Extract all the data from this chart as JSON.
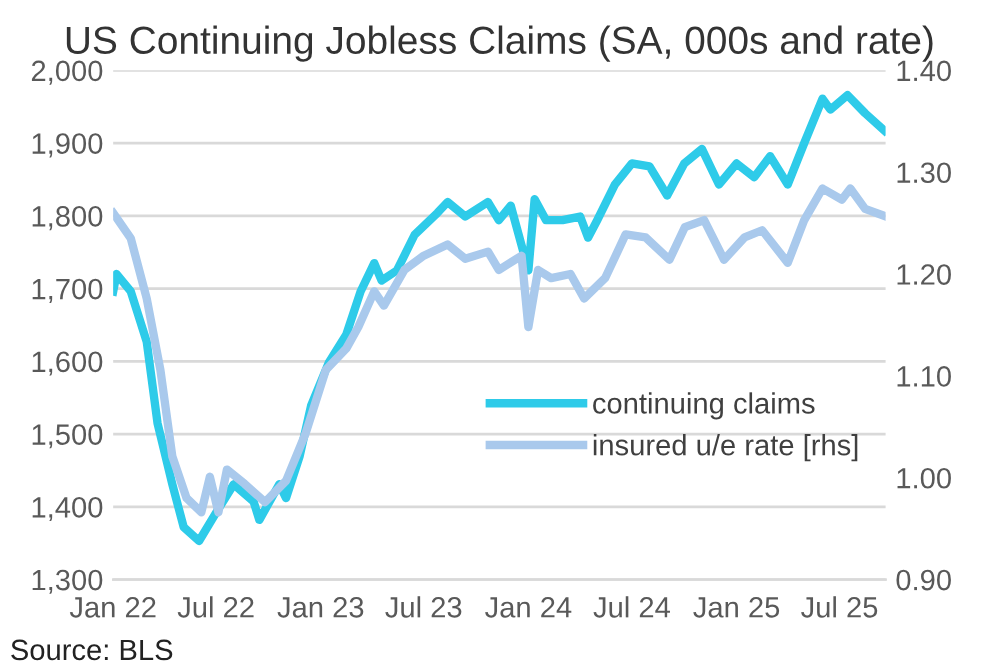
{
  "chart_data": {
    "type": "line",
    "title": "US Continuing Jobless Claims (SA, 000s and rate)",
    "xlim": [
      "2022-01-01",
      "2025-09-20"
    ],
    "xticks": [
      {
        "value": "2022-01-01",
        "label": "Jan 22"
      },
      {
        "value": "2022-07-01",
        "label": "Jul 22"
      },
      {
        "value": "2023-01-01",
        "label": "Jan 23"
      },
      {
        "value": "2023-07-01",
        "label": "Jul 23"
      },
      {
        "value": "2024-01-01",
        "label": "Jan 24"
      },
      {
        "value": "2024-07-01",
        "label": "Jul 24"
      },
      {
        "value": "2025-01-01",
        "label": "Jan 25"
      },
      {
        "value": "2025-07-01",
        "label": "Jul 25"
      }
    ],
    "ylim": [
      1300,
      2000
    ],
    "yticks": [
      {
        "value": 1300,
        "label": "1,300"
      },
      {
        "value": 1400,
        "label": "1,400"
      },
      {
        "value": 1500,
        "label": "1,500"
      },
      {
        "value": 1600,
        "label": "1,600"
      },
      {
        "value": 1700,
        "label": "1,700"
      },
      {
        "value": 1800,
        "label": "1,800"
      },
      {
        "value": 1900,
        "label": "1,900"
      },
      {
        "value": 2000,
        "label": "2,000"
      }
    ],
    "y2lim": [
      0.9,
      1.4
    ],
    "y2ticks": [
      {
        "value": 0.9,
        "label": "0.90"
      },
      {
        "value": 1.0,
        "label": "1.00"
      },
      {
        "value": 1.1,
        "label": "1.10"
      },
      {
        "value": 1.2,
        "label": "1.20"
      },
      {
        "value": 1.3,
        "label": "1.30"
      },
      {
        "value": 1.4,
        "label": "1.40"
      }
    ],
    "grid": "y",
    "legend": "right",
    "marker": "none",
    "line_style": "solid",
    "annotations": [
      "Source: BLS"
    ],
    "series": [
      {
        "name": "continuing claims",
        "color": "#2ecbe9",
        "x": [
          "2022-01-01",
          "2022-01-07",
          "2022-02-01",
          "2022-03-01",
          "2022-03-20",
          "2022-04-15",
          "2022-05-05",
          "2022-06-01",
          "2022-07-01",
          "2022-08-01",
          "2022-09-05",
          "2022-09-15",
          "2022-10-20",
          "2022-11-01",
          "2022-11-25",
          "2022-12-15",
          "2023-01-15",
          "2023-02-15",
          "2023-03-12",
          "2023-04-05",
          "2023-04-18",
          "2023-05-15",
          "2023-06-15",
          "2023-07-25",
          "2023-08-12",
          "2023-09-12",
          "2023-10-22",
          "2023-11-10",
          "2023-12-01",
          "2024-01-01",
          "2024-01-12",
          "2024-02-01",
          "2024-03-01",
          "2024-04-01",
          "2024-04-15",
          "2024-05-01",
          "2024-06-01",
          "2024-07-01",
          "2024-08-01",
          "2024-09-01",
          "2024-10-01",
          "2024-11-01",
          "2024-12-01",
          "2025-01-01",
          "2025-02-01",
          "2025-03-01",
          "2025-04-01",
          "2025-05-01",
          "2025-06-01",
          "2025-06-15",
          "2025-07-15",
          "2025-08-15",
          "2025-09-18"
        ],
        "values": [
          1696,
          1720,
          1696,
          1627,
          1515,
          1431,
          1372,
          1353,
          1392,
          1431,
          1407,
          1382,
          1431,
          1412,
          1470,
          1539,
          1598,
          1637,
          1696,
          1735,
          1711,
          1725,
          1774,
          1804,
          1819,
          1799,
          1819,
          1794,
          1814,
          1725,
          1823,
          1794,
          1794,
          1799,
          1770,
          1794,
          1843,
          1872,
          1868,
          1828,
          1872,
          1892,
          1843,
          1872,
          1853,
          1882,
          1843,
          1902,
          1961,
          1946,
          1966,
          1941,
          1917
        ]
      },
      {
        "name": "insured u/e rate [rhs]",
        "color": "#a9c9ec",
        "axis": "y2",
        "x": [
          "2022-01-01",
          "2022-02-01",
          "2022-03-01",
          "2022-03-25",
          "2022-04-15",
          "2022-05-10",
          "2022-06-05",
          "2022-06-20",
          "2022-07-05",
          "2022-07-20",
          "2022-08-20",
          "2022-09-25",
          "2022-11-01",
          "2022-12-05",
          "2023-01-10",
          "2023-02-15",
          "2023-03-08",
          "2023-04-05",
          "2023-04-22",
          "2023-05-28",
          "2023-07-01",
          "2023-08-12",
          "2023-09-12",
          "2023-10-22",
          "2023-11-10",
          "2023-12-20",
          "2024-01-01",
          "2024-01-18",
          "2024-02-10",
          "2024-03-15",
          "2024-04-08",
          "2024-05-15",
          "2024-06-20",
          "2024-07-25",
          "2024-09-05",
          "2024-10-02",
          "2024-11-05",
          "2024-12-10",
          "2025-01-15",
          "2025-02-15",
          "2025-04-01",
          "2025-04-30",
          "2025-06-01",
          "2025-07-05",
          "2025-07-20",
          "2025-08-15",
          "2025-09-18"
        ],
        "values": [
          1.26,
          1.235,
          1.176,
          1.106,
          1.021,
          0.98,
          0.966,
          1.001,
          0.966,
          1.008,
          0.994,
          0.976,
          0.997,
          1.043,
          1.106,
          1.127,
          1.148,
          1.183,
          1.169,
          1.204,
          1.218,
          1.229,
          1.215,
          1.222,
          1.204,
          1.218,
          1.148,
          1.204,
          1.196,
          1.2,
          1.176,
          1.196,
          1.239,
          1.236,
          1.214,
          1.246,
          1.253,
          1.214,
          1.236,
          1.243,
          1.211,
          1.253,
          1.284,
          1.273,
          1.284,
          1.264,
          1.257
        ]
      }
    ]
  }
}
